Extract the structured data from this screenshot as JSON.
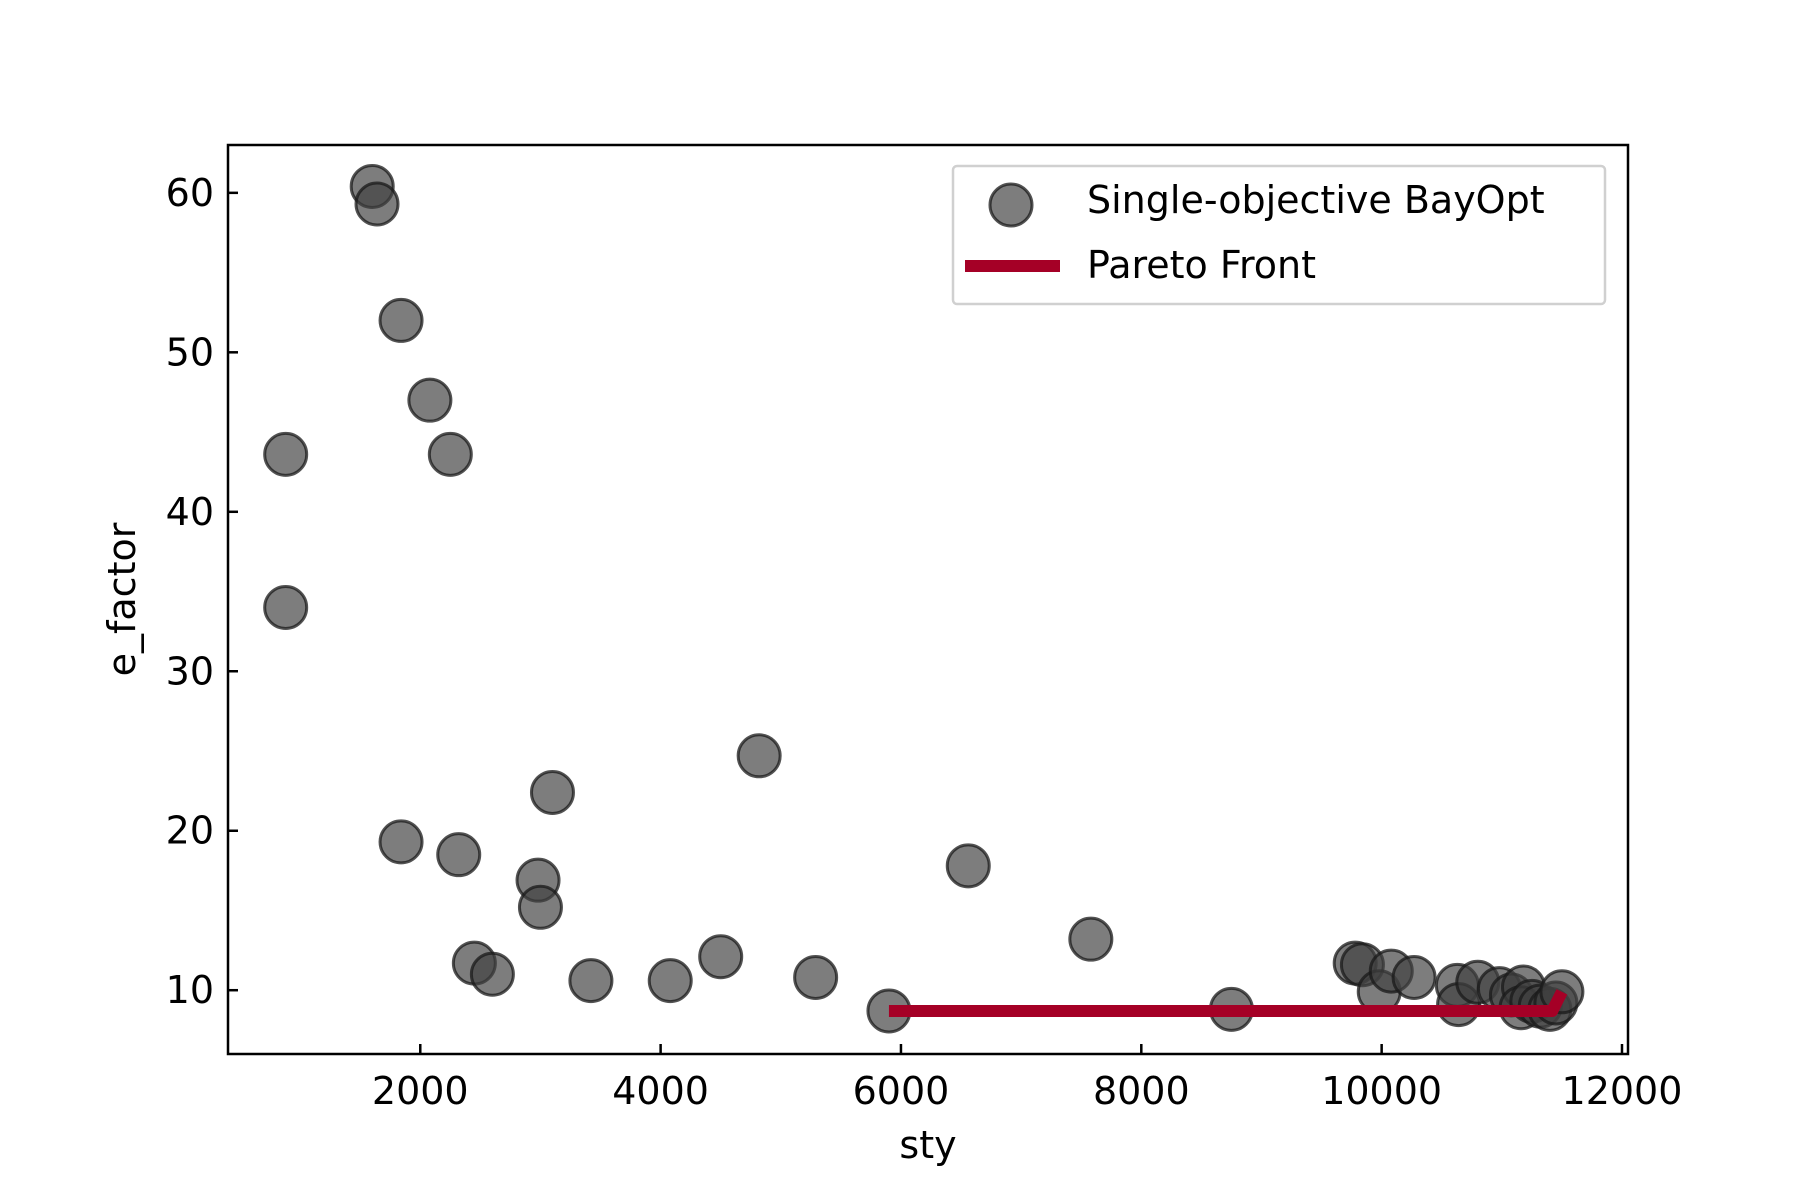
{
  "chart_data": {
    "type": "scatter",
    "title": "",
    "xlabel": "sty",
    "ylabel": "e_factor",
    "xlim": [
      400,
      12050
    ],
    "ylim": [
      6,
      63
    ],
    "xticks": [
      2000,
      4000,
      6000,
      8000,
      10000,
      12000
    ],
    "xtick_labels": [
      "2000",
      "4000",
      "6000",
      "8000",
      "10000",
      "12000"
    ],
    "yticks": [
      10,
      20,
      30,
      40,
      50,
      60
    ],
    "ytick_labels": [
      "10",
      "20",
      "30",
      "40",
      "50",
      "60"
    ],
    "grid": false,
    "legend_position": "top-right",
    "series": [
      {
        "name": "Single-objective BayOpt",
        "kind": "scatter",
        "color": "#404040",
        "points": [
          [
            1600,
            60.4
          ],
          [
            1640,
            59.3
          ],
          [
            1840,
            52.0
          ],
          [
            2080,
            47.0
          ],
          [
            2250,
            43.6
          ],
          [
            880,
            43.6
          ],
          [
            880,
            34.0
          ],
          [
            4820,
            24.7
          ],
          [
            3100,
            22.4
          ],
          [
            1840,
            19.3
          ],
          [
            2320,
            18.5
          ],
          [
            2980,
            16.9
          ],
          [
            3000,
            15.2
          ],
          [
            6560,
            17.8
          ],
          [
            7580,
            13.2
          ],
          [
            2450,
            11.7
          ],
          [
            2600,
            11.0
          ],
          [
            3420,
            10.6
          ],
          [
            4080,
            10.6
          ],
          [
            4500,
            12.1
          ],
          [
            5290,
            10.8
          ],
          [
            5900,
            8.7
          ],
          [
            8750,
            8.8
          ],
          [
            9780,
            11.7
          ],
          [
            9840,
            11.6
          ],
          [
            9980,
            9.9
          ],
          [
            10080,
            11.2
          ],
          [
            10270,
            10.8
          ],
          [
            10630,
            10.3
          ],
          [
            10640,
            9.1
          ],
          [
            10800,
            10.5
          ],
          [
            10980,
            10.1
          ],
          [
            11080,
            9.7
          ],
          [
            11180,
            10.2
          ],
          [
            11160,
            8.9
          ],
          [
            11250,
            9.3
          ],
          [
            11320,
            9.0
          ],
          [
            11400,
            8.8
          ],
          [
            11450,
            9.2
          ],
          [
            11500,
            9.9
          ]
        ]
      },
      {
        "name": "Pareto Front",
        "kind": "line",
        "color": "#a50026",
        "points": [
          [
            5900,
            8.7
          ],
          [
            11420,
            8.7
          ],
          [
            11500,
            9.9
          ]
        ]
      }
    ]
  }
}
